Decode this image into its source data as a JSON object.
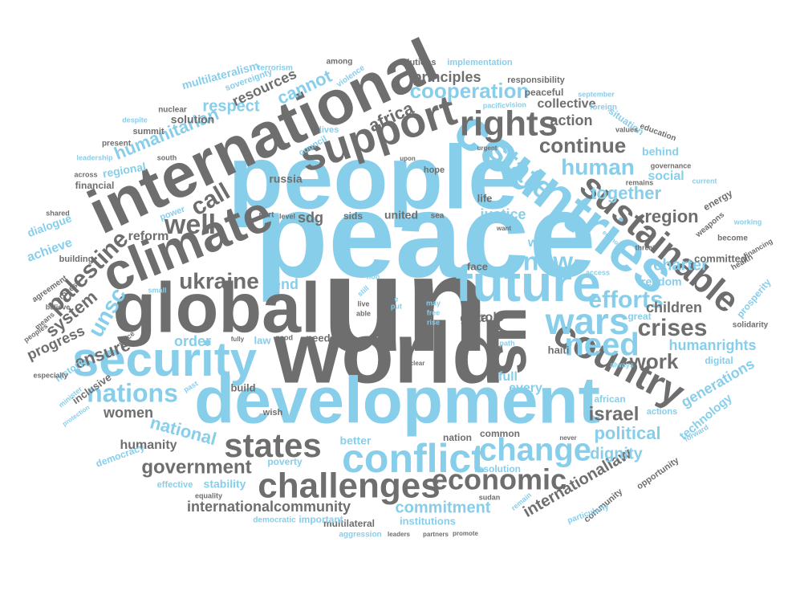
{
  "colors": {
    "gray": "#6e6e6e",
    "blue": "#87ceeb"
  },
  "words": [
    {
      "text": "peace",
      "color": "blue",
      "weight": 1.0
    },
    {
      "text": "un",
      "color": "gray",
      "weight": 1.0
    },
    {
      "text": "world",
      "color": "gray",
      "weight": 0.95
    },
    {
      "text": "people",
      "color": "blue",
      "weight": 0.9
    },
    {
      "text": "development",
      "color": "blue",
      "weight": 0.85
    },
    {
      "text": "international",
      "color": "gray",
      "weight": 0.85
    },
    {
      "text": "global",
      "color": "gray",
      "weight": 0.8
    },
    {
      "text": "countries",
      "color": "blue",
      "weight": 0.75
    },
    {
      "text": "climate",
      "color": "gray",
      "weight": 0.7
    },
    {
      "text": "security",
      "color": "blue",
      "weight": 0.65
    },
    {
      "text": "future",
      "color": "blue",
      "weight": 0.65
    },
    {
      "text": "us",
      "color": "gray",
      "weight": 0.65
    },
    {
      "text": "support",
      "color": "gray",
      "weight": 0.6
    },
    {
      "text": "sustainable",
      "color": "gray",
      "weight": 0.6
    },
    {
      "text": "country",
      "color": "gray",
      "weight": 0.55
    },
    {
      "text": "conflict",
      "color": "blue",
      "weight": 0.55
    },
    {
      "text": "challenges",
      "color": "gray",
      "weight": 0.5
    },
    {
      "text": "need",
      "color": "blue",
      "weight": 0.5
    },
    {
      "text": "wars",
      "color": "blue",
      "weight": 0.5
    },
    {
      "text": "rights",
      "color": "gray",
      "weight": 0.5
    },
    {
      "text": "states",
      "color": "gray",
      "weight": 0.48
    },
    {
      "text": "change",
      "color": "blue",
      "weight": 0.48
    },
    {
      "text": "economic",
      "color": "gray",
      "weight": 0.45
    },
    {
      "text": "state",
      "color": "blue",
      "weight": 0.45
    },
    {
      "text": "well",
      "color": "gray",
      "weight": 0.4
    },
    {
      "text": "new",
      "color": "blue",
      "weight": 0.4
    },
    {
      "text": "nations",
      "color": "blue",
      "weight": 0.4
    },
    {
      "text": "palestine",
      "color": "gray",
      "weight": 0.4
    },
    {
      "text": "efforts",
      "color": "blue",
      "weight": 0.4
    },
    {
      "text": "crises",
      "color": "gray",
      "weight": 0.38
    },
    {
      "text": "ukraine",
      "color": "gray",
      "weight": 0.38
    },
    {
      "text": "human",
      "color": "blue",
      "weight": 0.37
    },
    {
      "text": "continue",
      "color": "gray",
      "weight": 0.35
    },
    {
      "text": "israel",
      "color": "gray",
      "weight": 0.35
    },
    {
      "text": "cooperation",
      "color": "blue",
      "weight": 0.35
    },
    {
      "text": "work",
      "color": "gray",
      "weight": 0.35
    },
    {
      "text": "government",
      "color": "gray",
      "weight": 0.33
    },
    {
      "text": "call",
      "color": "gray",
      "weight": 0.33
    },
    {
      "text": "unsc",
      "color": "blue",
      "weight": 0.33
    },
    {
      "text": "political",
      "color": "blue",
      "weight": 0.32
    },
    {
      "text": "together",
      "color": "blue",
      "weight": 0.32
    },
    {
      "text": "region",
      "color": "gray",
      "weight": 0.32
    },
    {
      "text": "humanitarian",
      "color": "blue",
      "weight": 0.32
    },
    {
      "text": "internationallaw",
      "color": "gray",
      "weight": 0.3
    },
    {
      "text": "africa",
      "color": "gray",
      "weight": 0.3
    },
    {
      "text": "system",
      "color": "gray",
      "weight": 0.3
    },
    {
      "text": "national",
      "color": "blue",
      "weight": 0.3
    },
    {
      "text": "ensure",
      "color": "gray",
      "weight": 0.3
    },
    {
      "text": "internationalcommunity",
      "color": "gray",
      "weight": 0.28
    },
    {
      "text": "commitment",
      "color": "blue",
      "weight": 0.28
    },
    {
      "text": "principles",
      "color": "gray",
      "weight": 0.27
    },
    {
      "text": "women",
      "color": "gray",
      "weight": 0.27
    },
    {
      "text": "respect",
      "color": "blue",
      "weight": 0.27
    },
    {
      "text": "end",
      "color": "blue",
      "weight": 0.27
    },
    {
      "text": "dignity",
      "color": "blue",
      "weight": 0.27
    },
    {
      "text": "charter",
      "color": "blue",
      "weight": 0.27
    },
    {
      "text": "action",
      "color": "gray",
      "weight": 0.25
    },
    {
      "text": "collective",
      "color": "gray",
      "weight": 0.25
    },
    {
      "text": "progress",
      "color": "gray",
      "weight": 0.25
    },
    {
      "text": "children",
      "color": "gray",
      "weight": 0.25
    },
    {
      "text": "humanrights",
      "color": "blue",
      "weight": 0.25
    },
    {
      "text": "cannot",
      "color": "blue",
      "weight": 0.25
    },
    {
      "text": "order",
      "color": "blue",
      "weight": 0.24
    },
    {
      "text": "justice",
      "color": "blue",
      "weight": 0.24
    },
    {
      "text": "resources",
      "color": "gray",
      "weight": 0.24
    },
    {
      "text": "full",
      "color": "blue",
      "weight": 0.24
    },
    {
      "text": "every",
      "color": "blue",
      "weight": 0.24
    },
    {
      "text": "generations",
      "color": "blue",
      "weight": 0.24
    },
    {
      "text": "social",
      "color": "blue",
      "weight": 0.24
    },
    {
      "text": "gaza",
      "color": "gray",
      "weight": 0.24
    },
    {
      "text": "way",
      "color": "blue",
      "weight": 0.24
    },
    {
      "text": "sdg",
      "color": "gray",
      "weight": 0.23
    },
    {
      "text": "role",
      "color": "gray",
      "weight": 0.23
    },
    {
      "text": "achieve",
      "color": "blue",
      "weight": 0.23
    },
    {
      "text": "reform",
      "color": "gray",
      "weight": 0.22
    },
    {
      "text": "humanity",
      "color": "gray",
      "weight": 0.22
    },
    {
      "text": "technology",
      "color": "blue",
      "weight": 0.22
    },
    {
      "text": "multilateralism",
      "color": "blue",
      "weight": 0.2
    },
    {
      "text": "regional",
      "color": "blue",
      "weight": 0.2
    },
    {
      "text": "solution",
      "color": "gray",
      "weight": 0.2
    },
    {
      "text": "united",
      "color": "gray",
      "weight": 0.2
    },
    {
      "text": "russia",
      "color": "gray",
      "weight": 0.2
    },
    {
      "text": "dialogue",
      "color": "blue",
      "weight": 0.2
    },
    {
      "text": "build",
      "color": "gray",
      "weight": 0.2
    },
    {
      "text": "stability",
      "color": "blue",
      "weight": 0.2
    },
    {
      "text": "better",
      "color": "blue",
      "weight": 0.2
    },
    {
      "text": "freedom",
      "color": "blue",
      "weight": 0.2
    },
    {
      "text": "behind",
      "color": "blue",
      "weight": 0.19
    },
    {
      "text": "committed",
      "color": "gray",
      "weight": 0.19
    },
    {
      "text": "sids",
      "color": "gray",
      "weight": 0.18
    },
    {
      "text": "life",
      "color": "gray",
      "weight": 0.18
    },
    {
      "text": "face",
      "color": "gray",
      "weight": 0.18
    },
    {
      "text": "haiti",
      "color": "gray",
      "weight": 0.18
    },
    {
      "text": "law",
      "color": "blue",
      "weight": 0.18
    },
    {
      "text": "needs",
      "color": "gray",
      "weight": 0.17
    },
    {
      "text": "inclusive",
      "color": "gray",
      "weight": 0.17
    },
    {
      "text": "history",
      "color": "blue",
      "weight": 0.17
    },
    {
      "text": "financial",
      "color": "gray",
      "weight": 0.17
    },
    {
      "text": "energy",
      "color": "gray",
      "weight": 0.17
    },
    {
      "text": "prosperity",
      "color": "blue",
      "weight": 0.17
    },
    {
      "text": "democracy",
      "color": "blue",
      "weight": 0.16
    },
    {
      "text": "poverty",
      "color": "blue",
      "weight": 0.16
    },
    {
      "text": "resolution",
      "color": "blue",
      "weight": 0.16
    },
    {
      "text": "multilateral",
      "color": "gray",
      "weight": 0.16
    },
    {
      "text": "institutions",
      "color": "blue",
      "weight": 0.16
    },
    {
      "text": "important",
      "color": "blue",
      "weight": 0.16
    },
    {
      "text": "community",
      "color": "gray",
      "weight": 0.16
    },
    {
      "text": "digital",
      "color": "blue",
      "weight": 0.16
    },
    {
      "text": "great",
      "color": "blue",
      "weight": 0.15
    },
    {
      "text": "nation",
      "color": "gray",
      "weight": 0.15
    },
    {
      "text": "common",
      "color": "gray",
      "weight": 0.15
    },
    {
      "text": "sovereignty",
      "color": "blue",
      "weight": 0.15
    },
    {
      "text": "responsibility",
      "color": "gray",
      "weight": 0.15
    },
    {
      "text": "implementation",
      "color": "blue",
      "weight": 0.15
    },
    {
      "text": "solutions",
      "color": "gray",
      "weight": 0.15
    },
    {
      "text": "peaceful",
      "color": "gray",
      "weight": 0.15
    },
    {
      "text": "situation",
      "color": "blue",
      "weight": 0.15
    },
    {
      "text": "summit",
      "color": "gray",
      "weight": 0.14
    },
    {
      "text": "hope",
      "color": "gray",
      "weight": 0.14
    },
    {
      "text": "council",
      "color": "blue",
      "weight": 0.14
    },
    {
      "text": "lives",
      "color": "blue",
      "weight": 0.14
    },
    {
      "text": "building",
      "color": "gray",
      "weight": 0.14
    },
    {
      "text": "wish",
      "color": "gray",
      "weight": 0.14
    },
    {
      "text": "african",
      "color": "blue",
      "weight": 0.14
    },
    {
      "text": "actions",
      "color": "blue",
      "weight": 0.14
    },
    {
      "text": "opportunity",
      "color": "gray",
      "weight": 0.13
    },
    {
      "text": "effective",
      "color": "blue",
      "weight": 0.13
    },
    {
      "text": "democratic",
      "color": "blue",
      "weight": 0.13
    },
    {
      "text": "aggression",
      "color": "blue",
      "weight": 0.13
    },
    {
      "text": "particularly",
      "color": "blue",
      "weight": 0.13
    },
    {
      "text": "power",
      "color": "blue",
      "weight": 0.13
    },
    {
      "text": "process",
      "color": "gray",
      "weight": 0.13
    },
    {
      "text": "agreement",
      "color": "gray",
      "weight": 0.13
    },
    {
      "text": "solidarity",
      "color": "gray",
      "weight": 0.13
    },
    {
      "text": "health",
      "color": "gray",
      "weight": 0.13
    },
    {
      "text": "become",
      "color": "gray",
      "weight": 0.12
    },
    {
      "text": "weapons",
      "color": "gray",
      "weight": 0.12
    },
    {
      "text": "education",
      "color": "gray",
      "weight": 0.12
    },
    {
      "text": "violence",
      "color": "blue",
      "weight": 0.12
    },
    {
      "text": "terrorism",
      "color": "blue",
      "weight": 0.12
    },
    {
      "text": "nuclear",
      "color": "gray",
      "weight": 0.12
    },
    {
      "text": "leadership",
      "color": "blue",
      "weight": 0.11
    },
    {
      "text": "present",
      "color": "gray",
      "weight": 0.11
    },
    {
      "text": "despite",
      "color": "blue",
      "weight": 0.11
    },
    {
      "text": "south",
      "color": "gray",
      "weight": 0.11
    },
    {
      "text": "across",
      "color": "gray",
      "weight": 0.11
    },
    {
      "text": "shared",
      "color": "gray",
      "weight": 0.11
    },
    {
      "text": "believe",
      "color": "gray",
      "weight": 0.11
    },
    {
      "text": "means",
      "color": "gray",
      "weight": 0.11
    },
    {
      "text": "peoples",
      "color": "gray",
      "weight": 0.11
    },
    {
      "text": "place",
      "color": "gray",
      "weight": 0.11
    },
    {
      "text": "especially",
      "color": "gray",
      "weight": 0.11
    },
    {
      "text": "minister",
      "color": "blue",
      "weight": 0.11
    },
    {
      "text": "protection",
      "color": "blue",
      "weight": 0.11
    },
    {
      "text": "small",
      "color": "blue",
      "weight": 0.11
    },
    {
      "text": "equality",
      "color": "gray",
      "weight": 0.11
    },
    {
      "text": "leaders",
      "color": "gray",
      "weight": 0.11
    },
    {
      "text": "partners",
      "color": "gray",
      "weight": 0.11
    },
    {
      "text": "promote",
      "color": "gray",
      "weight": 0.11
    },
    {
      "text": "sudan",
      "color": "gray",
      "weight": 0.11
    },
    {
      "text": "remain",
      "color": "blue",
      "weight": 0.11
    },
    {
      "text": "forward",
      "color": "blue",
      "weight": 0.11
    },
    {
      "text": "never",
      "color": "gray",
      "weight": 0.1
    },
    {
      "text": "path",
      "color": "blue",
      "weight": 0.1
    },
    {
      "text": "key",
      "color": "gray",
      "weight": 0.1
    },
    {
      "text": "access",
      "color": "blue",
      "weight": 0.1
    },
    {
      "text": "threat",
      "color": "gray",
      "weight": 0.1
    },
    {
      "text": "always",
      "color": "blue",
      "weight": 0.1
    },
    {
      "text": "economy",
      "color": "blue",
      "weight": 0.1
    },
    {
      "text": "working",
      "color": "blue",
      "weight": 0.1
    },
    {
      "text": "financing",
      "color": "gray",
      "weight": 0.1
    },
    {
      "text": "governance",
      "color": "gray",
      "weight": 0.1
    },
    {
      "text": "current",
      "color": "blue",
      "weight": 0.1
    },
    {
      "text": "remains",
      "color": "gray",
      "weight": 0.1
    },
    {
      "text": "values",
      "color": "gray",
      "weight": 0.1
    },
    {
      "text": "foreign",
      "color": "blue",
      "weight": 0.1
    },
    {
      "text": "september",
      "color": "blue",
      "weight": 0.1
    },
    {
      "text": "vision",
      "color": "blue",
      "weight": 0.1
    },
    {
      "text": "pacific",
      "color": "blue",
      "weight": 0.1
    },
    {
      "text": "urgent",
      "color": "gray",
      "weight": 0.1
    },
    {
      "text": "upon",
      "color": "gray",
      "weight": 0.1
    },
    {
      "text": "among",
      "color": "gray",
      "weight": 0.1
    },
    {
      "text": "want",
      "color": "gray",
      "weight": 0.1
    },
    {
      "text": "level",
      "color": "gray",
      "weight": 0.1
    },
    {
      "text": "part",
      "color": "gray",
      "weight": 0.1
    },
    {
      "text": "sea",
      "color": "gray",
      "weight": 0.1
    },
    {
      "text": "non",
      "color": "blue",
      "weight": 0.1
    },
    {
      "text": "still",
      "color": "blue",
      "weight": 0.1
    },
    {
      "text": "live",
      "color": "gray",
      "weight": 0.1
    },
    {
      "text": "able",
      "color": "gray",
      "weight": 0.1
    },
    {
      "text": "e",
      "color": "blue",
      "weight": 0.1
    },
    {
      "text": "put",
      "color": "blue",
      "weight": 0.1
    },
    {
      "text": "may",
      "color": "blue",
      "weight": 0.1
    },
    {
      "text": "free",
      "color": "blue",
      "weight": 0.1
    },
    {
      "text": "rise",
      "color": "blue",
      "weight": 0.1
    },
    {
      "text": "good",
      "color": "gray",
      "weight": 0.1
    },
    {
      "text": "fully",
      "color": "gray",
      "weight": 0.1
    },
    {
      "text": "clear",
      "color": "gray",
      "weight": 0.1
    },
    {
      "text": "past",
      "color": "blue",
      "weight": 0.1
    }
  ]
}
